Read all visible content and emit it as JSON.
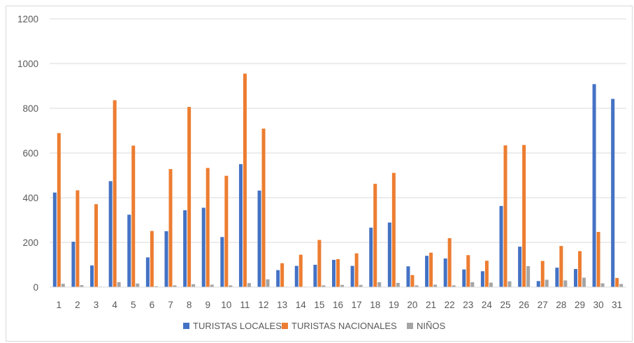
{
  "chart_data": {
    "type": "bar",
    "title": "",
    "xlabel": "",
    "ylabel": "",
    "ylim": [
      0,
      1200
    ],
    "yticks": [
      "0",
      "200",
      "400",
      "600",
      "800",
      "1000",
      "1200"
    ],
    "grid": true,
    "legend_position": "bottom",
    "categories": [
      "1",
      "2",
      "3",
      "4",
      "5",
      "6",
      "7",
      "8",
      "9",
      "10",
      "11",
      "12",
      "13",
      "14",
      "15",
      "16",
      "17",
      "18",
      "19",
      "20",
      "21",
      "22",
      "23",
      "24",
      "25",
      "26",
      "27",
      "28",
      "29",
      "30",
      "31"
    ],
    "series": [
      {
        "name": "TURISTAS LOCALES",
        "color": "#4472C4",
        "values": [
          423,
          203,
          97,
          474,
          324,
          133,
          250,
          344,
          355,
          224,
          550,
          432,
          76,
          95,
          100,
          122,
          95,
          266,
          289,
          93,
          140,
          128,
          79,
          71,
          363,
          181,
          27,
          87,
          81,
          908,
          842
        ]
      },
      {
        "name": "TURISTAS NACIONALES",
        "color": "#ED7D31",
        "values": [
          689,
          433,
          371,
          836,
          633,
          251,
          528,
          806,
          533,
          498,
          955,
          709,
          107,
          145,
          211,
          125,
          151,
          462,
          511,
          54,
          154,
          219,
          143,
          118,
          634,
          636,
          117,
          184,
          161,
          247,
          41
        ]
      },
      {
        "name": "NIÑOS",
        "color": "#A5A5A5",
        "values": [
          15,
          9,
          2,
          22,
          16,
          4,
          8,
          13,
          11,
          8,
          18,
          35,
          2,
          2,
          8,
          10,
          10,
          22,
          19,
          8,
          11,
          8,
          22,
          20,
          26,
          94,
          33,
          30,
          42,
          17,
          14
        ]
      }
    ]
  }
}
